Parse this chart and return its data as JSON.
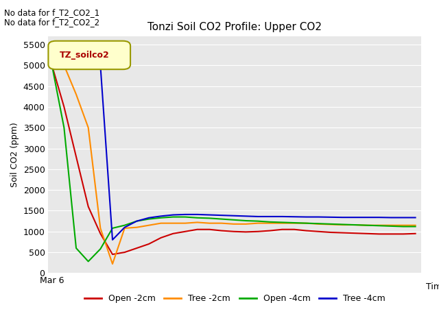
{
  "title": "Tonzi Soil CO2 Profile: Upper CO2",
  "ylabel": "Soil CO2 (ppm)",
  "xlabel": "Time",
  "no_data_text": [
    "No data for f_T2_CO2_1",
    "No data for f_T2_CO2_2"
  ],
  "legend_label": "TZ_soilco2",
  "ylim": [
    0,
    5700
  ],
  "yticks": [
    0,
    500,
    1000,
    1500,
    2000,
    2500,
    3000,
    3500,
    4000,
    4500,
    5000,
    5500
  ],
  "xticklabel": "Mar 6",
  "bg_color": "#e8e8e8",
  "series": {
    "open_2cm": {
      "label": "Open -2cm",
      "color": "#cc0000",
      "x": [
        0,
        1,
        2,
        3,
        4,
        5,
        6,
        7,
        8,
        9,
        10,
        11,
        12,
        13,
        14,
        15,
        16,
        17,
        18,
        19,
        20,
        21,
        22,
        23,
        24,
        25,
        26,
        27,
        28,
        29,
        30
      ],
      "y": [
        5000,
        4000,
        2800,
        1600,
        950,
        450,
        500,
        600,
        700,
        850,
        950,
        1000,
        1050,
        1050,
        1020,
        1000,
        990,
        1000,
        1020,
        1050,
        1050,
        1020,
        1000,
        980,
        970,
        960,
        950,
        940,
        940,
        940,
        950
      ]
    },
    "tree_2cm": {
      "label": "Tree -2cm",
      "color": "#ff8c00",
      "x": [
        0,
        1,
        2,
        3,
        4,
        5,
        6,
        7,
        8,
        9,
        10,
        11,
        12,
        13,
        14,
        15,
        16,
        17,
        18,
        19,
        20,
        21,
        22,
        23,
        24,
        25,
        26,
        27,
        28,
        29,
        30
      ],
      "y": [
        5000,
        5000,
        4300,
        3500,
        1080,
        220,
        1080,
        1100,
        1150,
        1200,
        1200,
        1200,
        1220,
        1200,
        1200,
        1180,
        1180,
        1200,
        1200,
        1200,
        1200,
        1200,
        1180,
        1170,
        1160,
        1160,
        1150,
        1150,
        1150,
        1150,
        1150
      ]
    },
    "open_4cm": {
      "label": "Open -4cm",
      "color": "#00aa00",
      "x": [
        0,
        1,
        2,
        3,
        4,
        5,
        6,
        7,
        8,
        9,
        10,
        11,
        12,
        13,
        14,
        15,
        16,
        17,
        18,
        19,
        20,
        21,
        22,
        23,
        24,
        25,
        26,
        27,
        28,
        29,
        30
      ],
      "y": [
        5000,
        3500,
        600,
        280,
        580,
        1080,
        1150,
        1250,
        1300,
        1330,
        1350,
        1350,
        1330,
        1320,
        1300,
        1280,
        1260,
        1250,
        1230,
        1220,
        1210,
        1200,
        1190,
        1180,
        1170,
        1160,
        1150,
        1140,
        1130,
        1120,
        1120
      ]
    },
    "tree_4cm": {
      "label": "Tree -4cm",
      "color": "#0000cc",
      "x": [
        0,
        1,
        2,
        3,
        4,
        5,
        6,
        7,
        8,
        9,
        10,
        11,
        12,
        13,
        14,
        15,
        16,
        17,
        18,
        19,
        20,
        21,
        22,
        23,
        24,
        25,
        26,
        27,
        28,
        29,
        30
      ],
      "y": [
        5000,
        5000,
        5000,
        5000,
        5000,
        800,
        1100,
        1250,
        1330,
        1370,
        1400,
        1410,
        1410,
        1400,
        1390,
        1380,
        1370,
        1360,
        1360,
        1360,
        1355,
        1350,
        1350,
        1345,
        1340,
        1340,
        1340,
        1340,
        1335,
        1335,
        1335
      ]
    }
  }
}
